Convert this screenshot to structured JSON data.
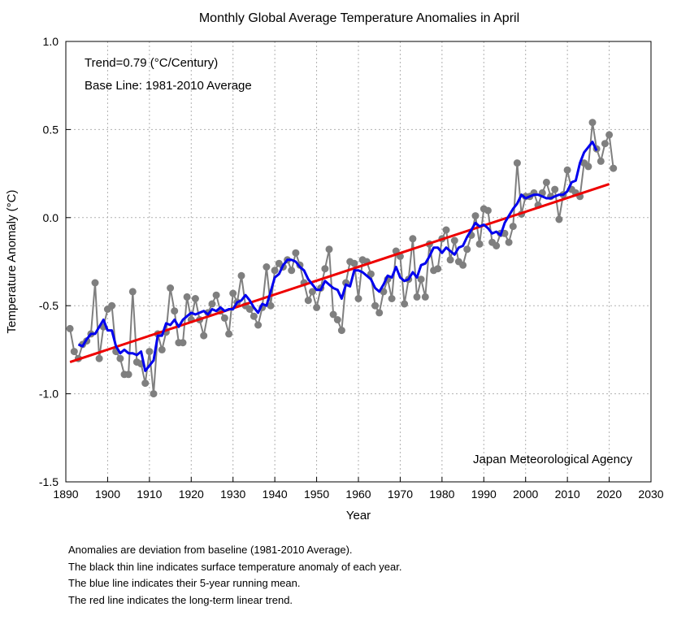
{
  "chart_data": {
    "type": "line",
    "title": "Monthly Global Average Temperature Anomalies in April",
    "xlabel": "Year",
    "ylabel": "Temperature Anomaly (°C)",
    "xlim": [
      1890,
      2030
    ],
    "ylim": [
      -1.5,
      1.0
    ],
    "xticks": [
      "1890",
      "1900",
      "1910",
      "1920",
      "1930",
      "1940",
      "1950",
      "1960",
      "1970",
      "1980",
      "1990",
      "2000",
      "2010",
      "2020",
      "2030"
    ],
    "yticks": [
      "1.0",
      "0.5",
      "0.0",
      "-0.5",
      "-1.0",
      "-1.5"
    ],
    "grid": true,
    "annotations": {
      "trend": "Trend=0.79 (°C/Century)",
      "baseline": "Base Line: 1981-2010 Average",
      "source": "Japan Meteorological Agency"
    },
    "colors": {
      "annual": "#7f7f7f",
      "running_mean": "#0000ee",
      "trend": "#ee0000",
      "grid": "#b0b0b0"
    },
    "series": [
      {
        "key": "annual",
        "x_start": 1891,
        "values": [
          -0.63,
          -0.76,
          -0.8,
          -0.72,
          -0.7,
          -0.66,
          -0.37,
          -0.8,
          -0.62,
          -0.52,
          -0.5,
          -0.76,
          -0.8,
          -0.89,
          -0.89,
          -0.42,
          -0.82,
          -0.83,
          -0.94,
          -0.76,
          -1.0,
          -0.66,
          -0.75,
          -0.65,
          -0.4,
          -0.53,
          -0.71,
          -0.71,
          -0.45,
          -0.58,
          -0.46,
          -0.58,
          -0.67,
          -0.54,
          -0.49,
          -0.44,
          -0.53,
          -0.57,
          -0.66,
          -0.43,
          -0.48,
          -0.33,
          -0.5,
          -0.52,
          -0.56,
          -0.61,
          -0.51,
          -0.28,
          -0.5,
          -0.3,
          -0.26,
          -0.28,
          -0.24,
          -0.3,
          -0.2,
          -0.27,
          -0.37,
          -0.47,
          -0.42,
          -0.51,
          -0.4,
          -0.29,
          -0.18,
          -0.55,
          -0.58,
          -0.64,
          -0.37,
          -0.25,
          -0.26,
          -0.46,
          -0.24,
          -0.25,
          -0.32,
          -0.5,
          -0.54,
          -0.42,
          -0.35,
          -0.46,
          -0.19,
          -0.22,
          -0.49,
          -0.35,
          -0.12,
          -0.45,
          -0.35,
          -0.45,
          -0.15,
          -0.3,
          -0.29,
          -0.12,
          -0.07,
          -0.24,
          -0.13,
          -0.25,
          -0.27,
          -0.18,
          -0.1,
          0.01,
          -0.15,
          0.05,
          0.04,
          -0.14,
          -0.16,
          -0.09,
          -0.09,
          -0.14,
          -0.05,
          0.31,
          0.02,
          0.12,
          0.12,
          0.14,
          0.07,
          0.14,
          0.2,
          0.12,
          0.16,
          -0.01,
          0.13,
          0.27,
          0.16,
          0.14,
          0.12,
          0.31,
          0.29,
          0.54,
          0.39,
          0.32,
          0.42,
          0.47,
          0.28
        ]
      },
      {
        "key": "running_mean",
        "x_start": 1893,
        "values": [
          -0.72,
          -0.73,
          -0.69,
          -0.66,
          -0.66,
          -0.62,
          -0.58,
          -0.64,
          -0.64,
          -0.73,
          -0.77,
          -0.75,
          -0.77,
          -0.77,
          -0.78,
          -0.76,
          -0.87,
          -0.84,
          -0.81,
          -0.67,
          -0.67,
          -0.6,
          -0.61,
          -0.58,
          -0.62,
          -0.58,
          -0.56,
          -0.54,
          -0.55,
          -0.54,
          -0.53,
          -0.55,
          -0.52,
          -0.53,
          -0.51,
          -0.53,
          -0.52,
          -0.52,
          -0.48,
          -0.47,
          -0.44,
          -0.47,
          -0.51,
          -0.54,
          -0.49,
          -0.5,
          -0.42,
          -0.34,
          -0.32,
          -0.27,
          -0.24,
          -0.24,
          -0.25,
          -0.28,
          -0.3,
          -0.35,
          -0.38,
          -0.41,
          -0.41,
          -0.36,
          -0.38,
          -0.4,
          -0.41,
          -0.46,
          -0.38,
          -0.39,
          -0.3,
          -0.3,
          -0.31,
          -0.33,
          -0.35,
          -0.4,
          -0.42,
          -0.38,
          -0.33,
          -0.34,
          -0.28,
          -0.34,
          -0.36,
          -0.35,
          -0.31,
          -0.34,
          -0.27,
          -0.26,
          -0.22,
          -0.17,
          -0.17,
          -0.2,
          -0.17,
          -0.19,
          -0.21,
          -0.17,
          -0.16,
          -0.11,
          -0.07,
          -0.03,
          -0.05,
          -0.04,
          -0.06,
          -0.09,
          -0.08,
          -0.1,
          -0.03,
          0.01,
          0.05,
          0.08,
          0.13,
          0.11,
          0.12,
          0.13,
          0.13,
          0.12,
          0.11,
          0.11,
          0.12,
          0.13,
          0.13,
          0.15,
          0.2,
          0.21,
          0.31,
          0.37,
          0.4,
          0.43,
          0.38
        ]
      },
      {
        "key": "trend",
        "x": [
          1891,
          2020
        ],
        "values": [
          -0.82,
          0.19
        ]
      }
    ]
  },
  "notes": {
    "line1": "Anomalies are deviation from baseline (1981-2010 Average).",
    "line2": "The black thin line indicates surface temperature anomaly of each year.",
    "line3": "The blue line indicates their 5-year running mean.",
    "line4": "The red line indicates the long-term linear trend."
  }
}
